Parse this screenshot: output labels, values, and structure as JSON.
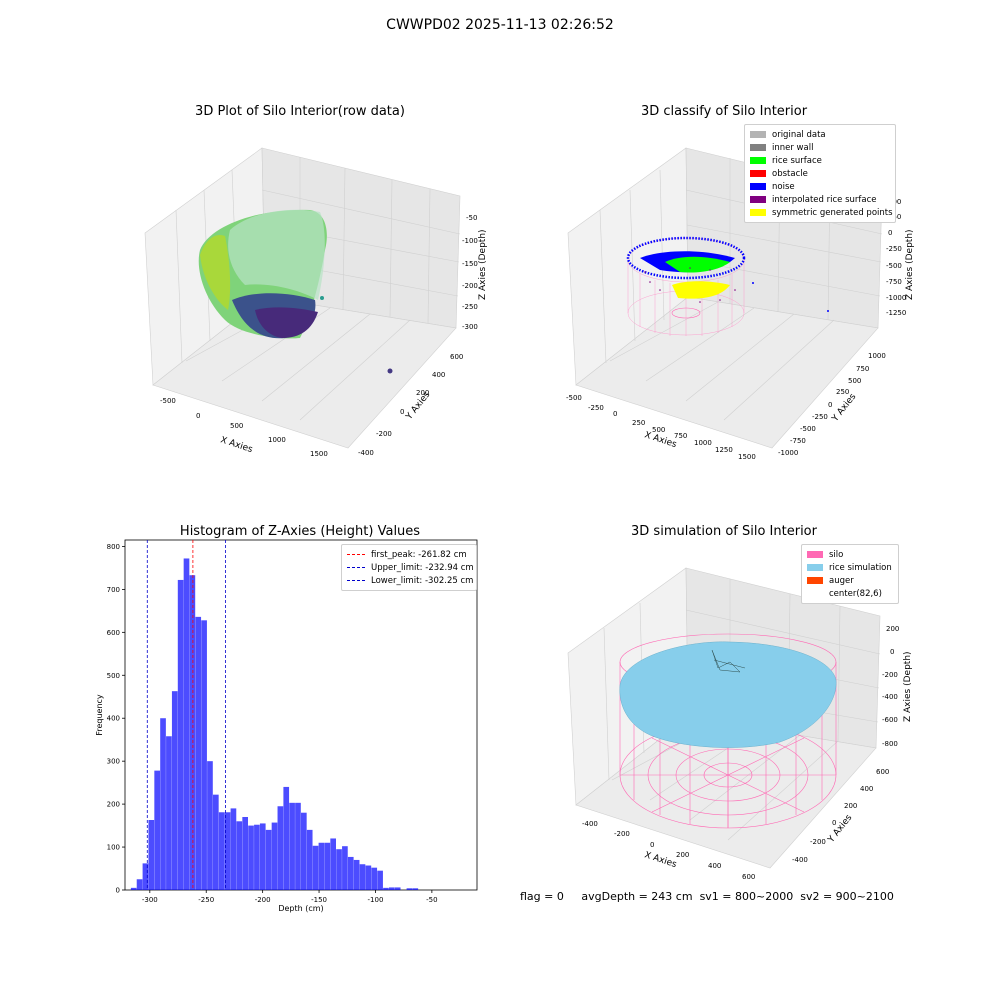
{
  "title": "CWWPD02 2025-11-13 02:26:52",
  "panels": {
    "raw": {
      "title": "3D Plot of Silo Interior(row data)",
      "xlabel": "X Axies",
      "ylabel": "Y Axies",
      "zlabel": "Z Axies (Depth)",
      "xticks": [
        "-500",
        "0",
        "500",
        "1000",
        "1500"
      ],
      "yticks": [
        "-400",
        "-200",
        "0",
        "200",
        "400",
        "600"
      ],
      "zticks": [
        "-50",
        "-100",
        "-150",
        "-200",
        "-250",
        "-300"
      ]
    },
    "classify": {
      "title": "3D classify of Silo Interior",
      "xlabel": "X Axies",
      "ylabel": "Y Axies",
      "zlabel": "Z Axies (Depth)",
      "xticks": [
        "-500",
        "-250",
        "0",
        "250",
        "500",
        "750",
        "1000",
        "1250",
        "1500"
      ],
      "yticks": [
        "-1000",
        "-750",
        "-500",
        "-250",
        "0",
        "250",
        "500",
        "750",
        "1000"
      ],
      "zticks": [
        "500",
        "250",
        "0",
        "-250",
        "-500",
        "-750",
        "-1000",
        "-1250"
      ],
      "legend": [
        {
          "label": "original data",
          "color": "#b3b3b3"
        },
        {
          "label": "inner wall",
          "color": "#808080"
        },
        {
          "label": "rice surface",
          "color": "#00ff00"
        },
        {
          "label": "obstacle",
          "color": "#ff0000"
        },
        {
          "label": "noise",
          "color": "#0000ff"
        },
        {
          "label": "interpolated rice surface",
          "color": "#800080"
        },
        {
          "label": "symmetric generated points",
          "color": "#ffff00"
        }
      ]
    },
    "simulation": {
      "title": "3D simulation of Silo Interior",
      "xlabel": "X Axies",
      "ylabel": "Y Axies",
      "zlabel": "Z Axies (Depth)",
      "xticks": [
        "-400",
        "-200",
        "0",
        "200",
        "400",
        "600"
      ],
      "yticks": [
        "-400",
        "-200",
        "0",
        "200",
        "400",
        "600"
      ],
      "zticks": [
        "200",
        "0",
        "-200",
        "-400",
        "-600",
        "-800"
      ],
      "legend": [
        {
          "label": "silo",
          "color": "#ff69b4"
        },
        {
          "label": "rice simulation",
          "color": "#87ceeb"
        },
        {
          "label": "auger",
          "color": "#ff4500"
        },
        {
          "label": "center(82,6)",
          "color": "#ffffff"
        }
      ]
    }
  },
  "chart_data": {
    "type": "bar",
    "title": "Histogram of Z-Axies (Height) Values",
    "xlabel": "Depth (cm)",
    "ylabel": "Frequency",
    "xlim": [
      -322,
      -10
    ],
    "ylim": [
      0,
      815
    ],
    "xticks": [
      -300,
      -250,
      -200,
      -150,
      -100,
      -50
    ],
    "yticks": [
      0,
      100,
      200,
      300,
      400,
      500,
      600,
      700,
      800
    ],
    "bin_width": 5.2,
    "bin_start": -322,
    "values": [
      0,
      5,
      25,
      62,
      163,
      278,
      400,
      358,
      463,
      722,
      772,
      733,
      636,
      628,
      300,
      222,
      181,
      181,
      190,
      160,
      170,
      150,
      152,
      155,
      140,
      157,
      195,
      240,
      203,
      203,
      180,
      140,
      103,
      110,
      110,
      120,
      95,
      102,
      77,
      70,
      60,
      57,
      52,
      45,
      5,
      6,
      6,
      0,
      4,
      4,
      0,
      0
    ],
    "color": "#0000ff",
    "vlines": [
      {
        "label": "first_peak: -261.82 cm",
        "x": -261.82,
        "color": "#ff0000"
      },
      {
        "label": "Upper_limit: -232.94 cm",
        "x": -232.94,
        "color": "#0000cc"
      },
      {
        "label": "Lower_limit: -302.25 cm",
        "x": -302.25,
        "color": "#0000cc"
      }
    ],
    "legend_position": "top-right"
  },
  "footer": {
    "flag": "flag = 0",
    "avg": "avgDepth = 243 cm",
    "sv1": "sv1 = 800~2000",
    "sv2": "sv2 = 900~2100"
  }
}
